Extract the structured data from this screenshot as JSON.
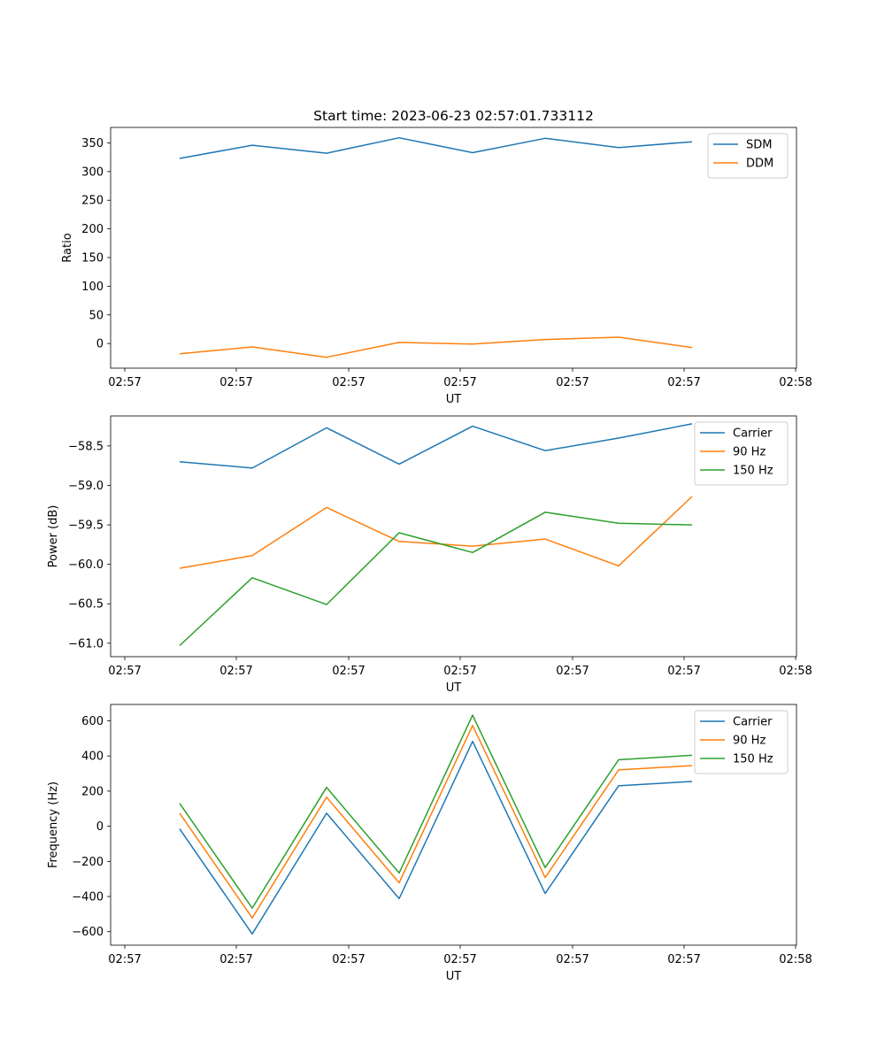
{
  "figure_title": "Start time: 2023-06-23 02:57:01.733112",
  "colors": {
    "blue": "#1f77b4",
    "orange": "#ff7f0e",
    "green": "#2ca02c"
  },
  "chart_data": [
    {
      "type": "line",
      "title": "Start time: 2023-06-23 02:57:01.733112",
      "xlabel": "UT",
      "ylabel": "Ratio",
      "x_tick_labels": [
        "02:57",
        "02:57",
        "02:57",
        "02:57",
        "02:57",
        "02:57",
        "02:58"
      ],
      "ylim": [
        -43,
        377
      ],
      "y_ticks": [
        0,
        50,
        100,
        150,
        200,
        250,
        300,
        350
      ],
      "grid": false,
      "legend_position": "top-right",
      "series": [
        {
          "name": "SDM",
          "color": "#1f77b4",
          "values": [
            323,
            346,
            332,
            359,
            333,
            358,
            342,
            352
          ]
        },
        {
          "name": "DDM",
          "color": "#ff7f0e",
          "values": [
            -18,
            -6,
            -24,
            2,
            -1,
            7,
            11,
            -7
          ]
        }
      ]
    },
    {
      "type": "line",
      "title": "",
      "xlabel": "UT",
      "ylabel": "Power (dB)",
      "x_tick_labels": [
        "02:57",
        "02:57",
        "02:57",
        "02:57",
        "02:57",
        "02:57",
        "02:58"
      ],
      "ylim": [
        -61.17,
        -58.12
      ],
      "y_ticks": [
        -61.0,
        -60.5,
        -60.0,
        -59.5,
        -59.0,
        -58.5
      ],
      "y_tick_labels": [
        "−61.0",
        "−60.5",
        "−60.0",
        "−59.5",
        "−59.0",
        "−58.5"
      ],
      "grid": false,
      "legend_position": "top-right",
      "series": [
        {
          "name": "Carrier",
          "color": "#1f77b4",
          "values": [
            -58.7,
            -58.78,
            -58.27,
            -58.73,
            -58.25,
            -58.56,
            -58.4,
            -58.22
          ]
        },
        {
          "name": "90 Hz",
          "color": "#ff7f0e",
          "values": [
            -60.05,
            -59.89,
            -59.28,
            -59.71,
            -59.77,
            -59.68,
            -60.02,
            -59.14
          ]
        },
        {
          "name": "150 Hz",
          "color": "#2ca02c",
          "values": [
            -61.03,
            -60.17,
            -60.51,
            -59.6,
            -59.85,
            -59.34,
            -59.48,
            -59.5
          ]
        }
      ]
    },
    {
      "type": "line",
      "title": "",
      "xlabel": "UT",
      "ylabel": "Frequency (Hz)",
      "x_tick_labels": [
        "02:57",
        "02:57",
        "02:57",
        "02:57",
        "02:57",
        "02:57",
        "02:58"
      ],
      "ylim": [
        -677,
        693
      ],
      "y_ticks": [
        -600,
        -400,
        -200,
        0,
        200,
        400,
        600
      ],
      "y_tick_labels": [
        "−600",
        "−400",
        "−200",
        "0",
        "200",
        "400",
        "600"
      ],
      "grid": false,
      "legend_position": "top-right",
      "series": [
        {
          "name": "Carrier",
          "color": "#1f77b4",
          "values": [
            -15,
            -613,
            74,
            -412,
            483,
            -383,
            230,
            255
          ]
        },
        {
          "name": "90 Hz",
          "color": "#ff7f0e",
          "values": [
            74,
            -522,
            165,
            -322,
            573,
            -292,
            321,
            345
          ]
        },
        {
          "name": "150 Hz",
          "color": "#2ca02c",
          "values": [
            130,
            -466,
            221,
            -266,
            632,
            -236,
            378,
            404
          ]
        }
      ]
    }
  ]
}
